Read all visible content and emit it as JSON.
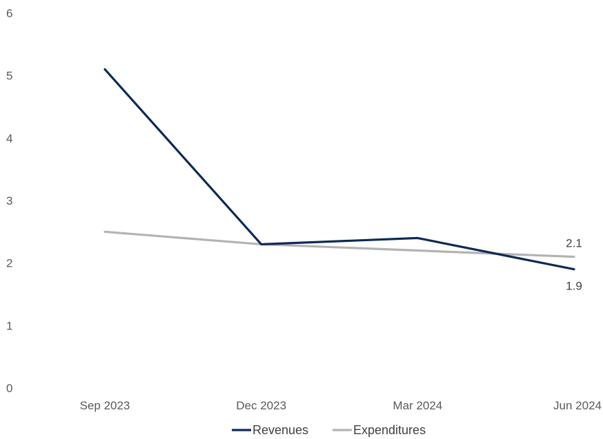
{
  "chart_data": {
    "type": "line",
    "categories": [
      "Sep 2023",
      "Dec 2023",
      "Mar 2024",
      "Jun 2024"
    ],
    "series": [
      {
        "name": "Revenues",
        "values": [
          5.1,
          2.3,
          2.4,
          1.9
        ],
        "color": "#0c2a56",
        "data_labels": [
          "",
          "",
          "",
          "1.9"
        ]
      },
      {
        "name": "Expenditures",
        "values": [
          2.5,
          2.3,
          2.2,
          2.1
        ],
        "color": "#b3b3b3",
        "data_labels": [
          "",
          "",
          "",
          "2.1"
        ]
      }
    ],
    "y_ticks": [
      "0",
      "1",
      "2",
      "3",
      "4",
      "5",
      "6"
    ],
    "ylim": [
      0,
      6
    ],
    "grid": false,
    "legend_position": "bottom-center"
  }
}
